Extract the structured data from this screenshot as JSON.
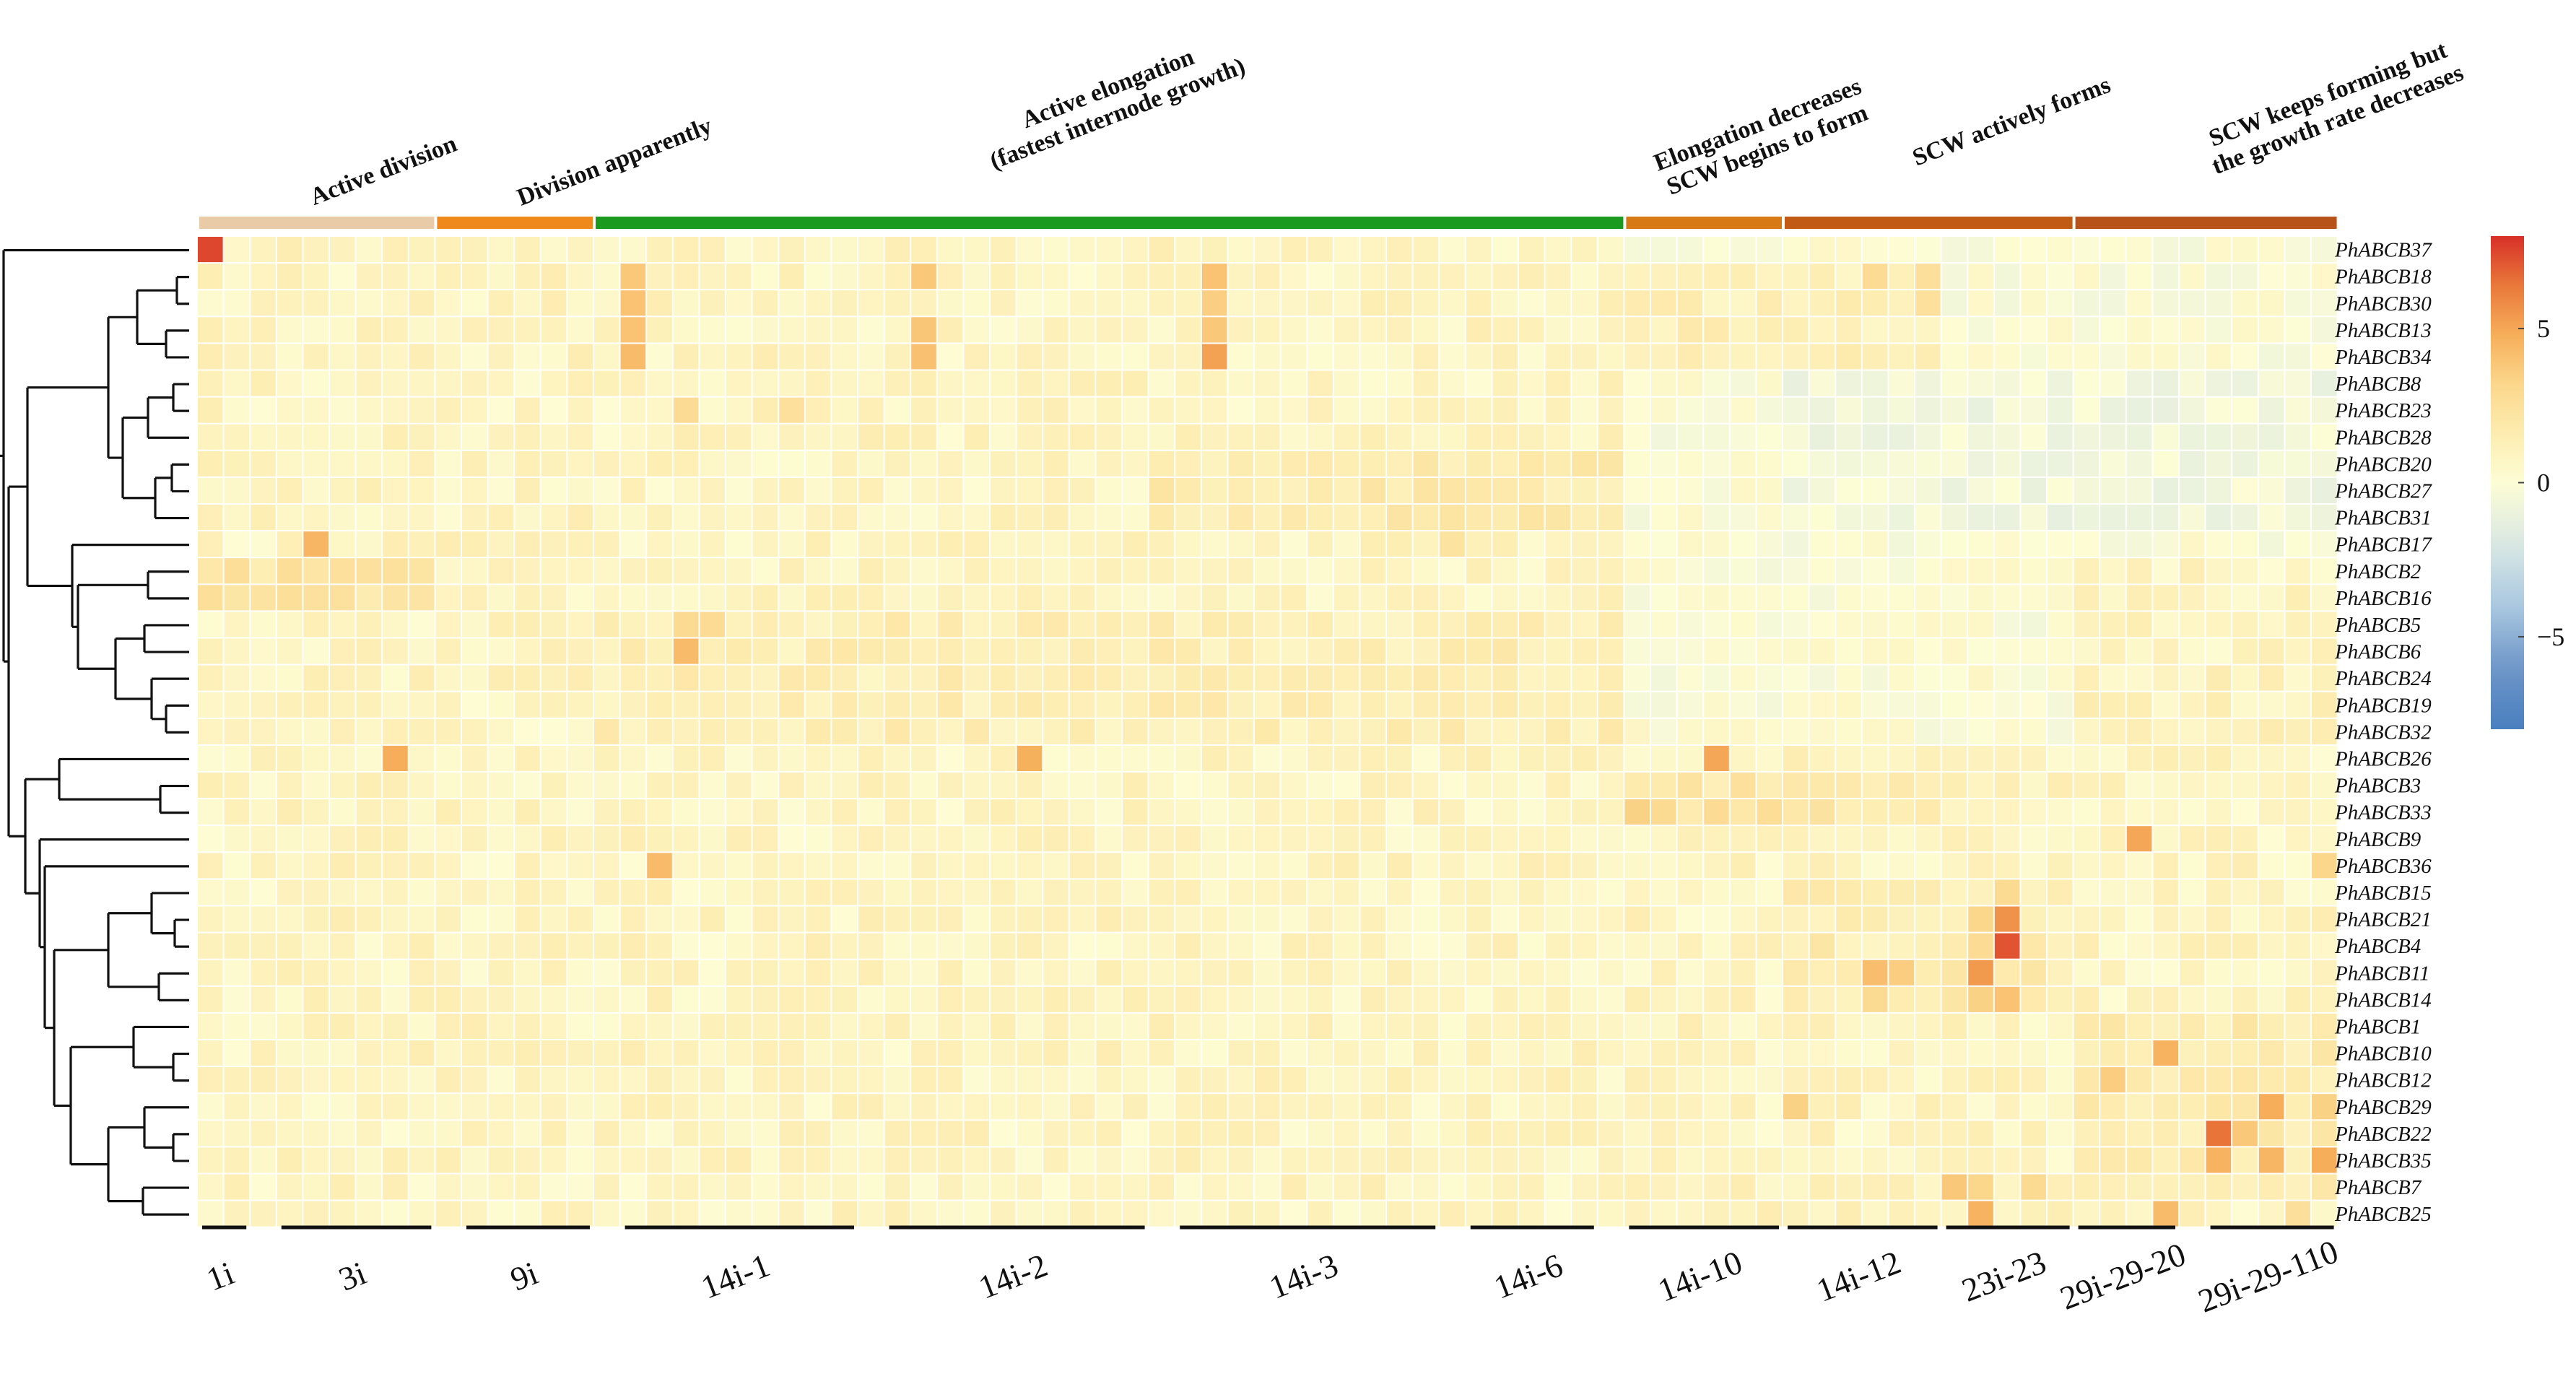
{
  "chart_data": {
    "type": "heatmap",
    "title": "",
    "stages": [
      {
        "label": [
          "Active division"
        ],
        "color": "#e9cba8"
      },
      {
        "label": [
          "Division apparently"
        ],
        "color": "#f0891c"
      },
      {
        "label": [
          "Active elongation",
          "(fastest internode growth)"
        ],
        "color": "#1a9a1e"
      },
      {
        "label": [
          "Elongation decreases",
          "SCW begins to form"
        ],
        "color": "#d77a16"
      },
      {
        "label": [
          "SCW actively forms"
        ],
        "color": "#c05a14"
      },
      {
        "label": [
          "SCW keeps forming but",
          "the growth rate decreases"
        ],
        "color": "#b7531a"
      }
    ],
    "stage_columns": [
      [
        0,
        8
      ],
      [
        9,
        14
      ],
      [
        15,
        53
      ],
      [
        54,
        59
      ],
      [
        60,
        70
      ],
      [
        71,
        80
      ]
    ],
    "groups": [
      {
        "label": "1i",
        "columns": [
          0,
          1
        ]
      },
      {
        "label": "3i",
        "columns": [
          3,
          8
        ]
      },
      {
        "label": "9i",
        "columns": [
          10,
          14
        ]
      },
      {
        "label": "14i-1",
        "columns": [
          16,
          24
        ]
      },
      {
        "label": "14i-2",
        "columns": [
          26,
          35
        ]
      },
      {
        "label": "14i-3",
        "columns": [
          37,
          46
        ]
      },
      {
        "label": "14i-6",
        "columns": [
          48,
          52
        ]
      },
      {
        "label": "14i-10",
        "columns": [
          54,
          59
        ]
      },
      {
        "label": "14i-12",
        "columns": [
          60,
          65
        ]
      },
      {
        "label": "23i-23",
        "columns": [
          66,
          70
        ]
      },
      {
        "label": "29i-29-20",
        "columns": [
          71,
          74
        ]
      },
      {
        "label": "29i-29-110",
        "columns": [
          76,
          80
        ]
      }
    ],
    "genes": [
      "PhABCB37",
      "PhABCB18",
      "PhABCB30",
      "PhABCB13",
      "PhABCB34",
      "PhABCB8",
      "PhABCB23",
      "PhABCB28",
      "PhABCB20",
      "PhABCB27",
      "PhABCB31",
      "PhABCB17",
      "PhABCB2",
      "PhABCB16",
      "PhABCB5",
      "PhABCB6",
      "PhABCB24",
      "PhABCB19",
      "PhABCB32",
      "PhABCB26",
      "PhABCB3",
      "PhABCB33",
      "PhABCB9",
      "PhABCB36",
      "PhABCB15",
      "PhABCB21",
      "PhABCB4",
      "PhABCB11",
      "PhABCB14",
      "PhABCB1",
      "PhABCB10",
      "PhABCB12",
      "PhABCB29",
      "PhABCB22",
      "PhABCB35",
      "PhABCB7",
      "PhABCB25"
    ],
    "n_columns": 81,
    "color_scale": {
      "min": -8,
      "max": 8,
      "low": "#4a7fbf",
      "mid": "#fdfdd5",
      "high": "#d73027"
    },
    "legend_ticks": [
      5,
      0,
      -5
    ],
    "legend_tick_labels": [
      "5",
      "0",
      "−5"
    ],
    "baseline": 0.8,
    "row_blocks": [
      {
        "rows": [
          0,
          11
        ],
        "columns": [
          54,
          80
        ],
        "value": 0.0
      },
      {
        "rows": [
          5,
          10
        ],
        "columns": [
          60,
          80
        ],
        "value": -0.6
      },
      {
        "rows": [
          12,
          13
        ],
        "columns": [
          0,
          8
        ],
        "value": 2.0
      },
      {
        "rows": [
          8,
          10
        ],
        "columns": [
          36,
          53
        ],
        "value": 1.6
      },
      {
        "rows": [
          14,
          18
        ],
        "columns": [
          15,
          53
        ],
        "value": 1.3
      },
      {
        "rows": [
          1,
          4
        ],
        "columns": [
          54,
          65
        ],
        "value": 1.2
      },
      {
        "rows": [
          29,
          35
        ],
        "columns": [
          71,
          80
        ],
        "value": 1.6
      },
      {
        "rows": [
          20,
          21
        ],
        "columns": [
          54,
          65
        ],
        "value": 1.8
      },
      {
        "rows": [
          24,
          28
        ],
        "columns": [
          60,
          70
        ],
        "value": 1.4
      },
      {
        "rows": [
          16,
          18
        ],
        "columns": [
          71,
          80
        ],
        "value": 1.0
      },
      {
        "rows": [
          12,
          18
        ],
        "columns": [
          54,
          70
        ],
        "value": 0.1
      }
    ],
    "highlights": [
      [
        0,
        0,
        7.5
      ],
      [
        1,
        16,
        3.8
      ],
      [
        2,
        16,
        4.0
      ],
      [
        3,
        16,
        4.0
      ],
      [
        4,
        16,
        4.3
      ],
      [
        1,
        27,
        3.8
      ],
      [
        3,
        27,
        3.9
      ],
      [
        4,
        27,
        4.1
      ],
      [
        1,
        38,
        4.0
      ],
      [
        2,
        38,
        3.5
      ],
      [
        3,
        38,
        3.8
      ],
      [
        4,
        38,
        5.2
      ],
      [
        1,
        63,
        2.8
      ],
      [
        1,
        65,
        2.6
      ],
      [
        2,
        65,
        2.5
      ],
      [
        11,
        4,
        4.5
      ],
      [
        11,
        47,
        2.3
      ],
      [
        14,
        18,
        3.0
      ],
      [
        15,
        18,
        4.3
      ],
      [
        14,
        19,
        2.8
      ],
      [
        6,
        18,
        2.8
      ],
      [
        6,
        22,
        2.5
      ],
      [
        19,
        7,
        4.8
      ],
      [
        19,
        31,
        4.7
      ],
      [
        19,
        57,
        5.0
      ],
      [
        21,
        54,
        3.4
      ],
      [
        21,
        55,
        3.0
      ],
      [
        21,
        57,
        2.8
      ],
      [
        21,
        59,
        2.7
      ],
      [
        20,
        58,
        2.5
      ],
      [
        22,
        73,
        5.0
      ],
      [
        23,
        17,
        4.3
      ],
      [
        23,
        80,
        3.2
      ],
      [
        25,
        68,
        5.6
      ],
      [
        26,
        68,
        7.2
      ],
      [
        27,
        67,
        5.4
      ],
      [
        28,
        68,
        4.0
      ],
      [
        28,
        67,
        3.4
      ],
      [
        27,
        63,
        4.2
      ],
      [
        27,
        64,
        3.6
      ],
      [
        28,
        63,
        3.0
      ],
      [
        24,
        68,
        3.0
      ],
      [
        25,
        67,
        3.2
      ],
      [
        26,
        67,
        2.8
      ],
      [
        30,
        74,
        4.6
      ],
      [
        31,
        72,
        3.6
      ],
      [
        32,
        78,
        4.8
      ],
      [
        32,
        80,
        3.4
      ],
      [
        32,
        60,
        3.4
      ],
      [
        33,
        76,
        6.5
      ],
      [
        33,
        77,
        3.8
      ],
      [
        34,
        76,
        4.6
      ],
      [
        34,
        78,
        4.5
      ],
      [
        34,
        80,
        4.8
      ],
      [
        35,
        66,
        3.8
      ],
      [
        35,
        67,
        3.2
      ],
      [
        35,
        69,
        3.0
      ],
      [
        36,
        67,
        4.6
      ],
      [
        36,
        74,
        4.3
      ],
      [
        36,
        79,
        2.6
      ]
    ]
  }
}
